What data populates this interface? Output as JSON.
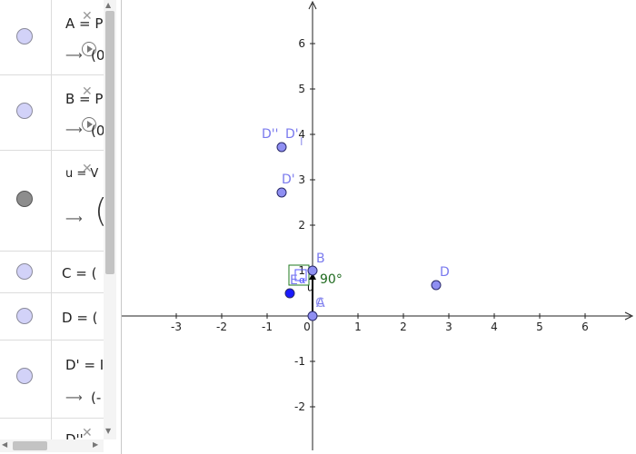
{
  "algebra": {
    "rows": [
      {
        "name": "A",
        "def": "A = P",
        "value": "(0"
      },
      {
        "name": "B",
        "def": "B = P",
        "value": "(0"
      },
      {
        "name": "u",
        "def": "u = V",
        "value": "("
      },
      {
        "name": "C",
        "def": "C = ("
      },
      {
        "name": "D",
        "def": "D = ("
      },
      {
        "name": "D'",
        "def": "D' = I",
        "value": "(-"
      },
      {
        "name": "D''",
        "def": "D''"
      }
    ]
  },
  "graphics": {
    "x_ticks": [
      "-3",
      "-2",
      "-1",
      "0",
      "1",
      "2",
      "3",
      "4",
      "5",
      "6"
    ],
    "y_ticks": [
      "6",
      "5",
      "4",
      "3",
      "2",
      "1",
      "-1",
      "-2"
    ],
    "points": [
      {
        "label": "D''",
        "x": -0.68,
        "y": 3.72
      },
      {
        "label": "D'",
        "x": -0.68,
        "y": 2.72
      },
      {
        "label": "B",
        "x": 0,
        "y": 1
      },
      {
        "label": "D",
        "x": 2.72,
        "y": 0.68
      },
      {
        "label": "A",
        "x": 0,
        "y": 0
      },
      {
        "label": "E",
        "x": -0.5,
        "y": 0.5
      }
    ],
    "extra_labels": {
      "d_prime_upper": "D'",
      "i_label": "I",
      "c_label": "C",
      "alpha": "α",
      "u": "u"
    },
    "angle_label": "90°"
  }
}
